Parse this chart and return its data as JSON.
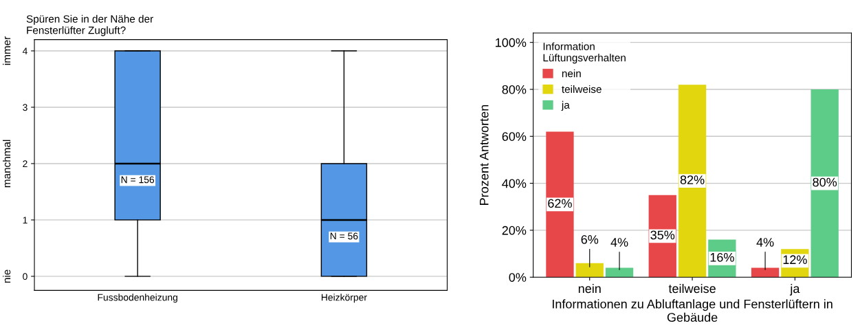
{
  "chart_data": [
    {
      "type": "box",
      "title": "Spüren Sie in der Nähe der\nFensterlüfter Zugluft?",
      "categories": [
        "Fussbodenheizung",
        "Heizkörper"
      ],
      "color": "#5497e5",
      "boxes": [
        {
          "low": 0,
          "q1": 1,
          "median": 2,
          "q3": 4,
          "high": 4
        },
        {
          "low": 0,
          "q1": 0,
          "median": 1,
          "q3": 2,
          "high": 4
        }
      ],
      "ylim": [
        -0.25,
        4.2
      ],
      "yticks": [
        0,
        1,
        2,
        3,
        4
      ],
      "annotations": [
        "N = 156",
        "N = 56",
        "nie",
        "manchmal",
        "immer"
      ],
      "grid": "y"
    },
    {
      "type": "bar",
      "xlabel": "Informationen zu Abluftanlage und Fensterlüftern in Gebäude",
      "ylabel": "Prozent Antworten",
      "legend_title": "Information\nLüftungsverhalten",
      "categories": [
        "nein",
        "teilweise",
        "ja"
      ],
      "series": [
        {
          "name": "nein",
          "color": "#e8474a",
          "values": [
            62,
            35,
            4
          ],
          "value_labels": [
            "62%",
            "35%",
            "4%"
          ]
        },
        {
          "name": "teilweise",
          "color": "#e2d70f",
          "values": [
            6,
            82,
            12
          ],
          "value_labels": [
            "6%",
            "82%",
            "12%"
          ]
        },
        {
          "name": "ja",
          "color": "#5ccc88",
          "values": [
            4,
            16,
            80
          ],
          "value_labels": [
            "4%",
            "16%",
            "80%"
          ]
        }
      ],
      "ylim": [
        0,
        104
      ],
      "yticks": [
        {
          "value": 0,
          "label": "0%"
        },
        {
          "value": 20,
          "label": "20%"
        },
        {
          "value": 40,
          "label": "40%"
        },
        {
          "value": 60,
          "label": "60%"
        },
        {
          "value": 80,
          "label": "80%"
        },
        {
          "value": 100,
          "label": "100%"
        }
      ],
      "grid": "y",
      "legend": "top left"
    }
  ]
}
